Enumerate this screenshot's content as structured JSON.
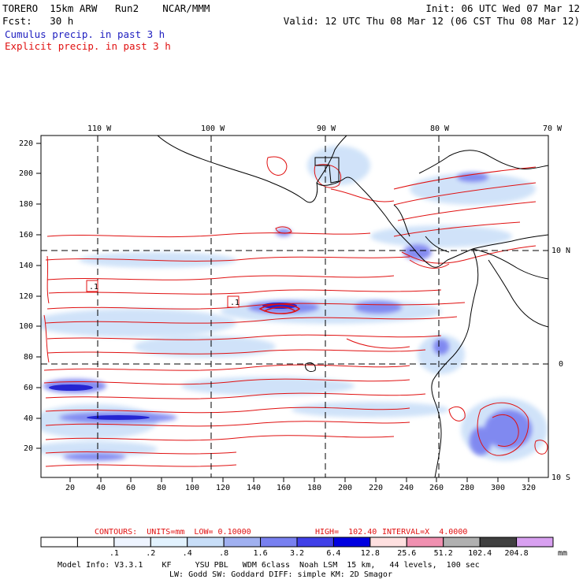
{
  "header": {
    "model": "TORERO  15km ARW   Run2    NCAR/MMM",
    "fcst": "Fcst:   30 h",
    "init": "Init: 06 UTC Wed 07 Mar 12",
    "valid": "Valid: 12 UTC Thu 08 Mar 12 (06 CST Thu 08 Mar 12)",
    "field1": "Cumulus precip. in past 3 h",
    "field2": "Explicit precip. in past 3 h"
  },
  "colors": {
    "cumulus": "#2020c0",
    "explicit": "#e01010"
  },
  "map": {
    "lon_labels": [
      "110 W",
      "100 W",
      "90 W",
      "80 W",
      "70 W"
    ],
    "lat_labels": [
      "10 N",
      "0",
      "10 S"
    ],
    "y_ticks": [
      "220",
      "200",
      "180",
      "160",
      "140",
      "120",
      "100",
      "80",
      "60",
      "40",
      "20"
    ],
    "x_ticks": [
      "20",
      "40",
      "60",
      "80",
      "100",
      "120",
      "140",
      "160",
      "180",
      "200",
      "220",
      "240",
      "260",
      "280",
      "300",
      "320"
    ],
    "contour_labels": [
      ".1",
      ".1"
    ]
  },
  "contours_line": {
    "prefix": "CONTOURS:  UNITS=mm  LOW= 0.10000",
    "high": "HIGH=  102.40",
    "interval": "INTERVAL=X  4.0000"
  },
  "colorbar": {
    "labels": [
      ".1",
      ".2",
      ".4",
      ".8",
      "1.6",
      "3.2",
      "6.4",
      "12.8",
      "25.6",
      "51.2",
      "102.4",
      "204.8"
    ],
    "unit": "mm",
    "colors": [
      "#ffffff",
      "#ffffff",
      "#eef4ff",
      "#e2f2fe",
      "#c8def8",
      "#a0b0f0",
      "#7880f0",
      "#4040e8",
      "#0000e0",
      "#ffe0e0",
      "#f090b0",
      "#b0b0b0",
      "#404040",
      "#d8a0f0"
    ]
  },
  "footer": {
    "line1": "Model Info: V3.3.1    KF     YSU PBL   WDM 6class  Noah LSM  15 km,   44 levels,  100 sec",
    "line2": "LW: Godd SW: Goddard DIFF: simple KM: 2D Smagor"
  }
}
